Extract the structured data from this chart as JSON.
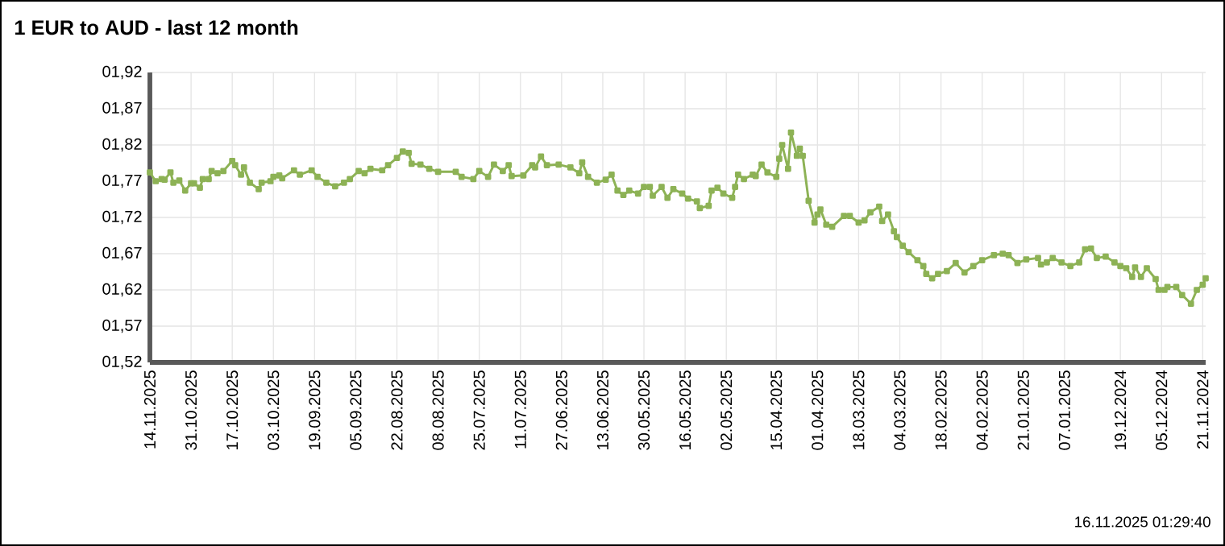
{
  "chart_data": {
    "type": "line",
    "title": "1 EUR to AUD - last 12 month",
    "annotations": [
      "16.11.2025 01:29:40"
    ],
    "series": [
      {
        "color": "#8db255",
        "x": [
          "2025-11-14",
          "2025-11-12",
          "2025-11-10",
          "2025-11-09",
          "2025-11-07",
          "2025-11-06",
          "2025-11-04",
          "2025-11-02",
          "2025-10-31",
          "2025-10-30",
          "2025-10-28",
          "2025-10-27",
          "2025-10-25",
          "2025-10-24",
          "2025-10-22",
          "2025-10-20",
          "2025-10-17",
          "2025-10-16",
          "2025-10-14",
          "2025-10-13",
          "2025-10-11",
          "2025-10-08",
          "2025-10-07",
          "2025-10-04",
          "2025-10-03",
          "2025-10-01",
          "2025-09-30",
          "2025-09-26",
          "2025-09-24",
          "2025-09-20",
          "2025-09-18",
          "2025-09-15",
          "2025-09-12",
          "2025-09-09",
          "2025-09-07",
          "2025-09-04",
          "2025-09-02",
          "2025-08-31",
          "2025-08-27",
          "2025-08-25",
          "2025-08-22",
          "2025-08-20",
          "2025-08-18",
          "2025-08-17",
          "2025-08-14",
          "2025-08-11",
          "2025-08-08",
          "2025-08-02",
          "2025-07-31",
          "2025-07-27",
          "2025-07-25",
          "2025-07-22",
          "2025-07-20",
          "2025-07-17",
          "2025-07-15",
          "2025-07-14",
          "2025-07-10",
          "2025-07-07",
          "2025-07-06",
          "2025-07-04",
          "2025-07-02",
          "2025-06-28",
          "2025-06-24",
          "2025-06-21",
          "2025-06-20",
          "2025-06-18",
          "2025-06-15",
          "2025-06-12",
          "2025-06-10",
          "2025-06-08",
          "2025-06-06",
          "2025-06-04",
          "2025-06-01",
          "2025-05-30",
          "2025-05-28",
          "2025-05-27",
          "2025-05-24",
          "2025-05-22",
          "2025-05-20",
          "2025-05-17",
          "2025-05-15",
          "2025-05-12",
          "2025-05-11",
          "2025-05-08",
          "2025-05-07",
          "2025-05-05",
          "2025-05-03",
          "2025-04-30",
          "2025-04-29",
          "2025-04-28",
          "2025-04-26",
          "2025-04-23",
          "2025-04-22",
          "2025-04-20",
          "2025-04-18",
          "2025-04-15",
          "2025-04-14",
          "2025-04-13",
          "2025-04-11",
          "2025-04-10",
          "2025-04-08",
          "2025-04-07",
          "2025-04-06",
          "2025-04-04",
          "2025-04-02",
          "2025-04-01",
          "2025-03-31",
          "2025-03-29",
          "2025-03-27",
          "2025-03-23",
          "2025-03-21",
          "2025-03-18",
          "2025-03-16",
          "2025-03-14",
          "2025-03-11",
          "2025-03-10",
          "2025-03-08",
          "2025-03-06",
          "2025-03-05",
          "2025-03-03",
          "2025-03-01",
          "2025-02-26",
          "2025-02-24",
          "2025-02-23",
          "2025-02-21",
          "2025-02-19",
          "2025-02-16",
          "2025-02-13",
          "2025-02-10",
          "2025-02-07",
          "2025-02-04",
          "2025-01-31",
          "2025-01-28",
          "2025-01-26",
          "2025-01-23",
          "2025-01-20",
          "2025-01-16",
          "2025-01-15",
          "2025-01-13",
          "2025-01-11",
          "2025-01-08",
          "2025-01-05",
          "2025-01-02",
          "2024-12-31",
          "2024-12-29",
          "2024-12-27",
          "2024-12-24",
          "2024-12-21",
          "2024-12-19",
          "2024-12-17",
          "2024-12-15",
          "2024-12-14",
          "2024-12-12",
          "2024-12-10",
          "2024-12-07",
          "2024-12-06",
          "2024-12-04",
          "2024-12-03",
          "2024-11-30",
          "2024-11-28",
          "2024-11-25",
          "2024-11-23",
          "2024-11-21",
          "2024-11-20"
        ],
        "values": [
          1.782,
          1.77,
          1.773,
          1.772,
          1.782,
          1.768,
          1.771,
          1.757,
          1.767,
          1.767,
          1.761,
          1.773,
          1.773,
          1.784,
          1.781,
          1.784,
          1.798,
          1.792,
          1.779,
          1.789,
          1.768,
          1.759,
          1.768,
          1.77,
          1.776,
          1.778,
          1.774,
          1.785,
          1.779,
          1.785,
          1.776,
          1.768,
          1.763,
          1.768,
          1.773,
          1.784,
          1.781,
          1.787,
          1.785,
          1.792,
          1.802,
          1.811,
          1.809,
          1.794,
          1.793,
          1.787,
          1.783,
          1.783,
          1.776,
          1.773,
          1.784,
          1.776,
          1.793,
          1.784,
          1.792,
          1.777,
          1.778,
          1.792,
          1.789,
          1.804,
          1.792,
          1.793,
          1.789,
          1.781,
          1.796,
          1.776,
          1.768,
          1.772,
          1.779,
          1.757,
          1.751,
          1.757,
          1.753,
          1.762,
          1.762,
          1.75,
          1.762,
          1.747,
          1.759,
          1.753,
          1.746,
          1.742,
          1.733,
          1.736,
          1.757,
          1.761,
          1.753,
          1.747,
          1.762,
          1.779,
          1.773,
          1.779,
          1.777,
          1.793,
          1.782,
          1.776,
          1.801,
          1.82,
          1.787,
          1.837,
          1.805,
          1.815,
          1.805,
          1.743,
          1.713,
          1.724,
          1.731,
          1.71,
          1.707,
          1.722,
          1.722,
          1.713,
          1.716,
          1.727,
          1.735,
          1.715,
          1.724,
          1.701,
          1.693,
          1.681,
          1.672,
          1.661,
          1.653,
          1.642,
          1.636,
          1.642,
          1.646,
          1.657,
          1.644,
          1.653,
          1.661,
          1.668,
          1.67,
          1.668,
          1.657,
          1.662,
          1.664,
          1.655,
          1.658,
          1.664,
          1.658,
          1.653,
          1.658,
          1.676,
          1.677,
          1.664,
          1.666,
          1.658,
          1.653,
          1.65,
          1.638,
          1.651,
          1.638,
          1.65,
          1.635,
          1.62,
          1.62,
          1.624,
          1.624,
          1.613,
          1.601,
          1.62,
          1.627,
          1.636
        ]
      }
    ],
    "xlim": [
      "2025-11-14",
      "2024-11-20"
    ],
    "xticks": [
      {
        "value": "2025-11-14",
        "label": "14.11.2025"
      },
      {
        "value": "2025-10-31",
        "label": "31.10.2025"
      },
      {
        "value": "2025-10-17",
        "label": "17.10.2025"
      },
      {
        "value": "2025-10-03",
        "label": "03.10.2025"
      },
      {
        "value": "2025-09-19",
        "label": "19.09.2025"
      },
      {
        "value": "2025-09-05",
        "label": "05.09.2025"
      },
      {
        "value": "2025-08-22",
        "label": "22.08.2025"
      },
      {
        "value": "2025-08-08",
        "label": "08.08.2025"
      },
      {
        "value": "2025-07-25",
        "label": "25.07.2025"
      },
      {
        "value": "2025-07-11",
        "label": "11.07.2025"
      },
      {
        "value": "2025-06-27",
        "label": "27.06.2025"
      },
      {
        "value": "2025-06-13",
        "label": "13.06.2025"
      },
      {
        "value": "2025-05-30",
        "label": "30.05.2025"
      },
      {
        "value": "2025-05-16",
        "label": "16.05.2025"
      },
      {
        "value": "2025-05-02",
        "label": "02.05.2025"
      },
      {
        "value": "2025-04-15",
        "label": "15.04.2025"
      },
      {
        "value": "2025-04-01",
        "label": "01.04.2025"
      },
      {
        "value": "2025-03-18",
        "label": "18.03.2025"
      },
      {
        "value": "2025-03-04",
        "label": "04.03.2025"
      },
      {
        "value": "2025-02-18",
        "label": "18.02.2025"
      },
      {
        "value": "2025-02-04",
        "label": "04.02.2025"
      },
      {
        "value": "2025-01-21",
        "label": "21.01.2025"
      },
      {
        "value": "2025-01-07",
        "label": "07.01.2025"
      },
      {
        "value": "2024-12-19",
        "label": "19.12.2024"
      },
      {
        "value": "2024-12-05",
        "label": "05.12.2024"
      },
      {
        "value": "2024-11-21",
        "label": "21.11.2024"
      }
    ],
    "ylim": [
      1.52,
      1.92
    ],
    "yticks": [
      {
        "value": 1.52,
        "label": "01,52"
      },
      {
        "value": 1.57,
        "label": "01,57"
      },
      {
        "value": 1.62,
        "label": "01,62"
      },
      {
        "value": 1.67,
        "label": "01,67"
      },
      {
        "value": 1.72,
        "label": "01,72"
      },
      {
        "value": 1.77,
        "label": "01,77"
      },
      {
        "value": 1.82,
        "label": "01,82"
      },
      {
        "value": 1.87,
        "label": "01,87"
      },
      {
        "value": 1.92,
        "label": "01,92"
      }
    ],
    "grid": true,
    "marker": "square"
  }
}
